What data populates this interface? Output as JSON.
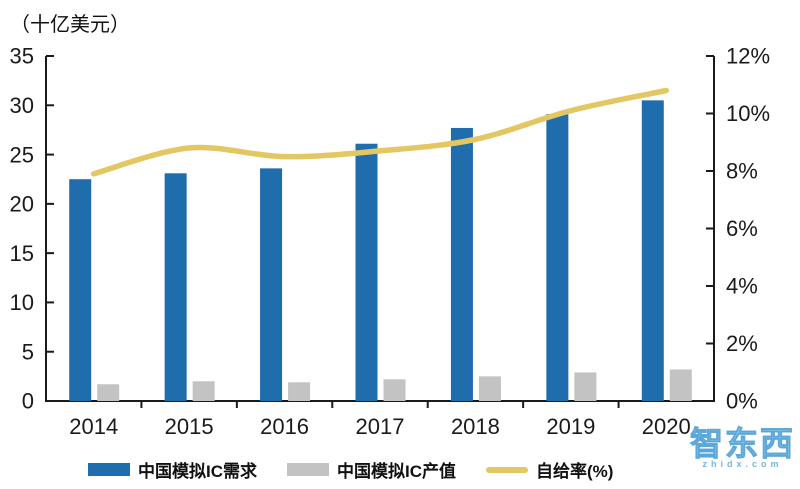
{
  "chart_data": {
    "type": "bar",
    "categories": [
      "2014",
      "2015",
      "2016",
      "2017",
      "2018",
      "2019",
      "2020"
    ],
    "series": [
      {
        "name": "中国模拟IC需求",
        "type": "bar",
        "axis": "left",
        "color": "#1F6DAD",
        "values": [
          22.5,
          23.1,
          23.6,
          26.1,
          27.7,
          29.1,
          30.5
        ]
      },
      {
        "name": "中国模拟IC产值",
        "type": "bar",
        "axis": "left",
        "color": "#C3C3C3",
        "values": [
          1.7,
          2.0,
          1.9,
          2.2,
          2.5,
          2.9,
          3.2
        ]
      },
      {
        "name": "自给率(%)",
        "type": "line",
        "axis": "right",
        "color": "#E3C763",
        "values": [
          7.9,
          8.8,
          8.5,
          8.7,
          9.1,
          10.1,
          10.8
        ]
      }
    ],
    "left_axis": {
      "title": "（十亿美元）",
      "min": 0,
      "max": 35,
      "step": 5,
      "tick_labels": [
        "0",
        "5",
        "10",
        "15",
        "20",
        "25",
        "30",
        "35"
      ]
    },
    "right_axis": {
      "min": 0,
      "max": 12,
      "step": 2,
      "tick_labels": [
        "0%",
        "2%",
        "4%",
        "6%",
        "8%",
        "10%",
        "12%"
      ]
    },
    "grid": false,
    "legend_position": "bottom",
    "axis_color": "#1a1a1a"
  },
  "watermark": {
    "title": "智东西",
    "subtitle": "zhidx.com"
  }
}
